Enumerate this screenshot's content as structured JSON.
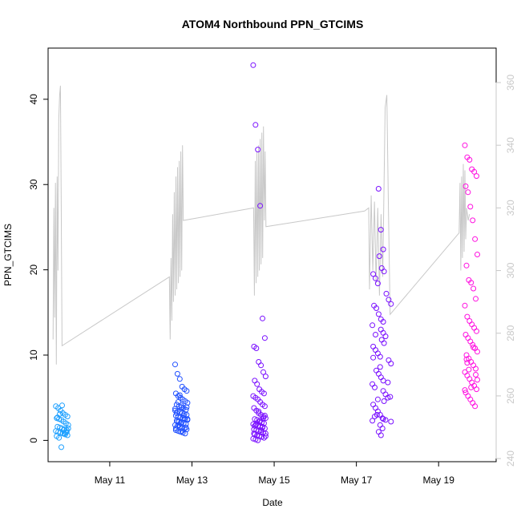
{
  "chart_data": {
    "type": "scatter",
    "title": "ATOM4 Northbound PPN_GTCIMS",
    "xlabel": "Date",
    "ylabel": "PPN_GTCIMS",
    "x_ticks": [
      "May 11",
      "May 13",
      "May 15",
      "May 17",
      "May 19"
    ],
    "xlim": [
      "May 9.5",
      "May 20.4"
    ],
    "ylim": [
      -2.5,
      46
    ],
    "y_ticks": [
      0,
      10,
      20,
      30,
      40
    ],
    "y2lim": [
      239,
      371
    ],
    "y2_ticks": [
      240,
      260,
      280,
      300,
      320,
      340,
      360
    ],
    "grid": false,
    "legend": "none",
    "colors": {
      "points_early": "#1ea0ff",
      "points_mid": "#2050ff",
      "points_late": "#7a10ff",
      "points_last": "#ff10e0",
      "line": "#c8c8c8"
    },
    "series": [
      {
        "day": "May 10",
        "x_center": 9.85,
        "y_values": [
          4.0,
          3.8,
          3.5,
          3.2,
          3.0,
          2.8,
          2.6,
          2.5,
          2.4,
          2.2,
          2.0,
          1.8,
          1.6,
          1.5,
          1.4,
          1.3,
          1.2,
          1.1,
          1.0,
          0.9,
          0.8,
          0.7,
          0.6,
          0.5,
          0.3,
          -0.8,
          1.2,
          0.9,
          1.4,
          2.7,
          3.1,
          4.1,
          0.8,
          1.0
        ]
      },
      {
        "day": "May 12-13",
        "x_center": 12.75,
        "y_values": [
          8.9,
          7.8,
          7.2,
          6.3,
          6.0,
          5.8,
          5.5,
          5.2,
          5.0,
          4.8,
          4.6,
          4.4,
          4.2,
          4.0,
          3.9,
          3.8,
          3.6,
          3.5,
          3.4,
          3.3,
          3.2,
          3.1,
          3.0,
          2.9,
          2.8,
          2.7,
          2.6,
          2.5,
          2.4,
          2.3,
          2.2,
          2.1,
          2.0,
          1.9,
          1.8,
          1.7,
          1.6,
          1.5,
          1.4,
          1.3,
          1.2,
          1.1,
          1.0,
          0.9,
          0.8,
          2.5,
          3.2,
          1.8,
          4.1,
          2.9,
          1.5,
          3.7,
          2.2,
          5.3,
          1.1,
          2.6,
          3.9,
          1.4,
          4.5,
          2.0
        ]
      },
      {
        "day": "May 14-15",
        "x_center": 14.65,
        "y_values": [
          44.0,
          37.0,
          34.1,
          27.5,
          14.3,
          12.0,
          11.0,
          10.8,
          9.2,
          8.8,
          8.0,
          7.5,
          7.0,
          6.6,
          6.0,
          5.7,
          5.5,
          5.2,
          5.0,
          4.8,
          4.5,
          4.2,
          4.0,
          3.8,
          3.5,
          3.2,
          3.0,
          2.8,
          2.6,
          2.5,
          2.4,
          2.2,
          2.1,
          2.0,
          1.9,
          1.8,
          1.7,
          1.6,
          1.5,
          1.4,
          1.3,
          1.2,
          1.1,
          1.0,
          0.9,
          0.8,
          0.7,
          0.6,
          0.5,
          0.4,
          0.3,
          0.2,
          0.1,
          0.0,
          2.3,
          1.6,
          2.9,
          0.8,
          1.9,
          3.4,
          1.2,
          2.6,
          0.5,
          1.7
        ]
      },
      {
        "day": "May 17-18",
        "x_center": 17.55,
        "y_values": [
          29.5,
          24.7,
          22.4,
          21.6,
          20.2,
          19.8,
          19.5,
          19.0,
          18.4,
          17.2,
          16.5,
          16.0,
          15.8,
          15.5,
          14.8,
          14.2,
          13.9,
          13.5,
          13.0,
          12.6,
          12.2,
          11.8,
          11.4,
          11.0,
          10.6,
          10.2,
          9.8,
          9.4,
          9.0,
          8.6,
          8.2,
          7.8,
          7.4,
          7.0,
          6.6,
          6.2,
          5.8,
          5.4,
          5.0,
          4.6,
          4.2,
          3.8,
          3.4,
          3.0,
          2.6,
          2.2,
          1.8,
          1.4,
          1.0,
          0.6,
          2.5,
          2.3,
          2.8,
          3.0,
          2.4,
          6.8,
          5.1,
          9.7,
          12.4,
          4.8
        ]
      },
      {
        "day": "May 19-20",
        "x_center": 19.8,
        "y_values": [
          34.6,
          33.2,
          32.9,
          31.8,
          31.5,
          31.0,
          29.8,
          29.1,
          27.4,
          25.8,
          23.6,
          21.8,
          20.5,
          18.8,
          18.5,
          17.8,
          16.6,
          15.8,
          14.5,
          14.0,
          13.6,
          13.2,
          12.8,
          12.4,
          12.0,
          11.6,
          11.2,
          10.8,
          10.4,
          10.0,
          9.6,
          9.2,
          8.8,
          8.4,
          8.0,
          7.6,
          7.2,
          6.8,
          6.4,
          6.0,
          5.6,
          5.2,
          4.8,
          4.4,
          4.0,
          7.1,
          9.5,
          8.3,
          6.2,
          10.9,
          7.7,
          5.9,
          9.1
        ]
      }
    ],
    "line_series": {
      "axis": "right",
      "points": [
        [
          9.62,
          278
        ],
        [
          9.64,
          320
        ],
        [
          9.66,
          285
        ],
        [
          9.68,
          328
        ],
        [
          9.7,
          270
        ],
        [
          9.72,
          330
        ],
        [
          9.74,
          300
        ],
        [
          9.76,
          348
        ],
        [
          9.78,
          356
        ],
        [
          9.8,
          359
        ],
        [
          9.82,
          320
        ],
        [
          9.84,
          276
        ],
        [
          12.45,
          298
        ],
        [
          12.47,
          278
        ],
        [
          12.49,
          304
        ],
        [
          12.51,
          284
        ],
        [
          12.53,
          318
        ],
        [
          12.55,
          290
        ],
        [
          12.57,
          325
        ],
        [
          12.59,
          292
        ],
        [
          12.61,
          330
        ],
        [
          12.63,
          294
        ],
        [
          12.65,
          333
        ],
        [
          12.67,
          296
        ],
        [
          12.69,
          335
        ],
        [
          12.71,
          298
        ],
        [
          12.73,
          338
        ],
        [
          12.75,
          300
        ],
        [
          12.77,
          340
        ],
        [
          12.79,
          316
        ],
        [
          14.5,
          320
        ],
        [
          14.52,
          292
        ],
        [
          14.54,
          335
        ],
        [
          14.56,
          296
        ],
        [
          14.58,
          338
        ],
        [
          14.6,
          298
        ],
        [
          14.62,
          340
        ],
        [
          14.64,
          300
        ],
        [
          14.66,
          342
        ],
        [
          14.68,
          302
        ],
        [
          14.7,
          344
        ],
        [
          14.72,
          304
        ],
        [
          14.74,
          346
        ],
        [
          14.76,
          316
        ],
        [
          14.78,
          338
        ],
        [
          14.8,
          314
        ],
        [
          17.2,
          319
        ],
        [
          17.3,
          320
        ],
        [
          17.32,
          294
        ],
        [
          17.36,
          324
        ],
        [
          17.4,
          300
        ],
        [
          17.44,
          322
        ],
        [
          17.48,
          296
        ],
        [
          17.52,
          320
        ],
        [
          17.56,
          292
        ],
        [
          17.6,
          318
        ],
        [
          17.64,
          298
        ],
        [
          17.7,
          352
        ],
        [
          17.74,
          356
        ],
        [
          17.78,
          320
        ],
        [
          17.82,
          286
        ],
        [
          19.5,
          312
        ],
        [
          19.52,
          328
        ],
        [
          19.54,
          300
        ],
        [
          19.56,
          330
        ],
        [
          19.58,
          304
        ],
        [
          19.6,
          334
        ],
        [
          19.62,
          306
        ],
        [
          19.64,
          332
        ],
        [
          19.66,
          310
        ],
        [
          19.68,
          320
        ],
        [
          19.72,
          316
        ],
        [
          19.75,
          318
        ]
      ]
    }
  }
}
